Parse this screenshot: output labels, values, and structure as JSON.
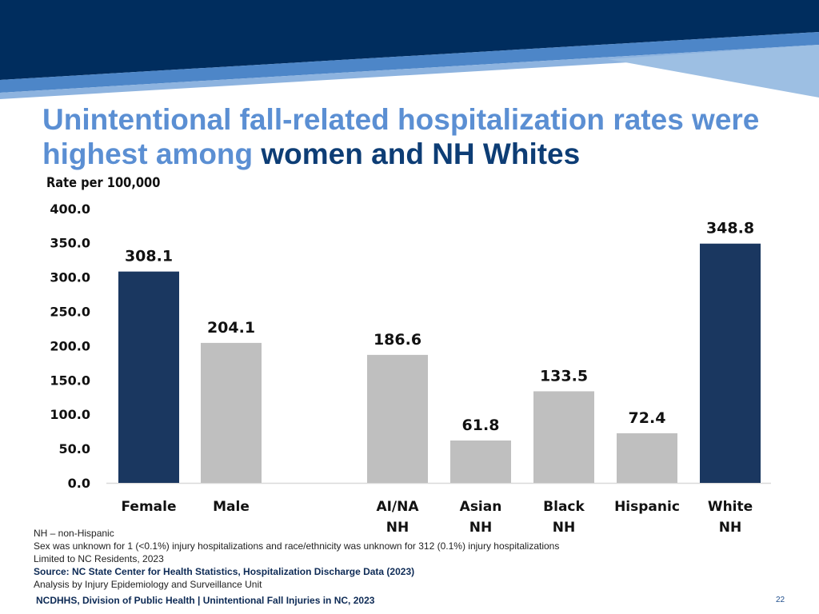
{
  "title": {
    "part1": "Unintentional fall-related hospitalization rates were highest among ",
    "part2": "women and NH Whites"
  },
  "colors": {
    "navy": "#1a3760",
    "gray": "#bfbfbf",
    "title_light": "#5b8fd3",
    "title_dark": "#0d3d75"
  },
  "chart_data": {
    "type": "bar",
    "ylabel": "Rate per 100,000",
    "ylim": [
      0,
      400
    ],
    "ytick_step": 50,
    "ytick_labels": [
      "0.0",
      "50.0",
      "100.0",
      "150.0",
      "200.0",
      "250.0",
      "300.0",
      "350.0",
      "400.0"
    ],
    "grid": false,
    "bars": [
      {
        "category": "Female",
        "value": 308.1,
        "label": "308.1",
        "highlight": true
      },
      {
        "category": "Male",
        "value": 204.1,
        "label": "204.1",
        "highlight": false
      },
      {
        "category": "AI/NA NH",
        "value": 186.6,
        "label": "186.6",
        "highlight": false
      },
      {
        "category": "Asian NH",
        "value": 61.8,
        "label": "61.8",
        "highlight": false
      },
      {
        "category": "Black NH",
        "value": 133.5,
        "label": "133.5",
        "highlight": false
      },
      {
        "category": "Hispanic",
        "value": 72.4,
        "label": "72.4",
        "highlight": false
      },
      {
        "category": "White NH",
        "value": 348.8,
        "label": "348.8",
        "highlight": true
      }
    ]
  },
  "notes": {
    "line1": "NH – non-Hispanic",
    "line2": "Sex was unknown for 1 (<0.1%) injury hospitalizations and race/ethnicity was unknown for 312 (0.1%) injury hospitalizations",
    "line3": "Limited to NC Residents, 2023",
    "source": "Source: NC State Center for Health Statistics, Hospitalization Discharge Data (2023)",
    "line5": "Analysis by Injury Epidemiology and Surveillance Unit"
  },
  "footer": {
    "text": "NCDHHS, Division of Public Health | Unintentional Fall Injuries in NC, 2023",
    "page_number": "22"
  }
}
